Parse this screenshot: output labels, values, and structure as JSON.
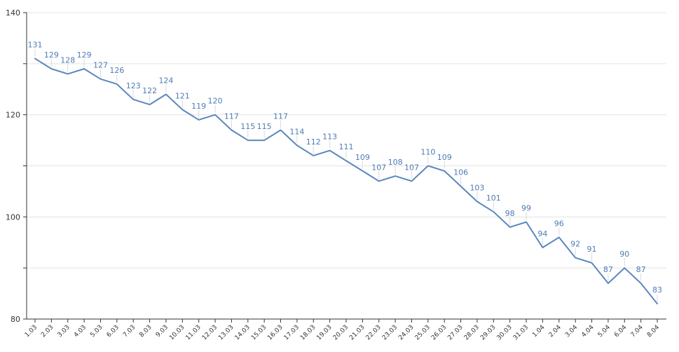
{
  "chart_data": {
    "type": "line",
    "title": "",
    "xlabel": "",
    "ylabel": "",
    "ylim": [
      80,
      140
    ],
    "yticks": [
      80,
      100,
      120,
      140
    ],
    "grid": true,
    "legend": "none",
    "categories": [
      "1.03",
      "2.03",
      "3.03",
      "4.03",
      "5.03",
      "6.03",
      "7.03",
      "8.03",
      "9.03",
      "10.03",
      "11.03",
      "12.03",
      "13.03",
      "14.03",
      "15.03",
      "16.03",
      "17.03",
      "18.03",
      "19.03",
      "20.03",
      "21.03",
      "22.03",
      "23.03",
      "24.03",
      "25.03",
      "26.03",
      "27.03",
      "28.03",
      "29.03",
      "30.03",
      "31.03",
      "1.04",
      "2.04",
      "3.04",
      "4.04",
      "5.04",
      "6.04",
      "7.04",
      "8.04"
    ],
    "series": [
      {
        "values": [
          131,
          129,
          128,
          129,
          127,
          126,
          123,
          122,
          124,
          121,
          119,
          120,
          117,
          115,
          115,
          117,
          114,
          112,
          113,
          111,
          109,
          107,
          108,
          107,
          110,
          109,
          106,
          103,
          101,
          98,
          99,
          94,
          96,
          92,
          91,
          87,
          90,
          87,
          83
        ],
        "color": "#5b87bf"
      }
    ],
    "colors": {
      "line": "#5b87bf",
      "label": "#4f7bb5",
      "grid": "#e3e3e3",
      "axis": "#333333"
    }
  }
}
